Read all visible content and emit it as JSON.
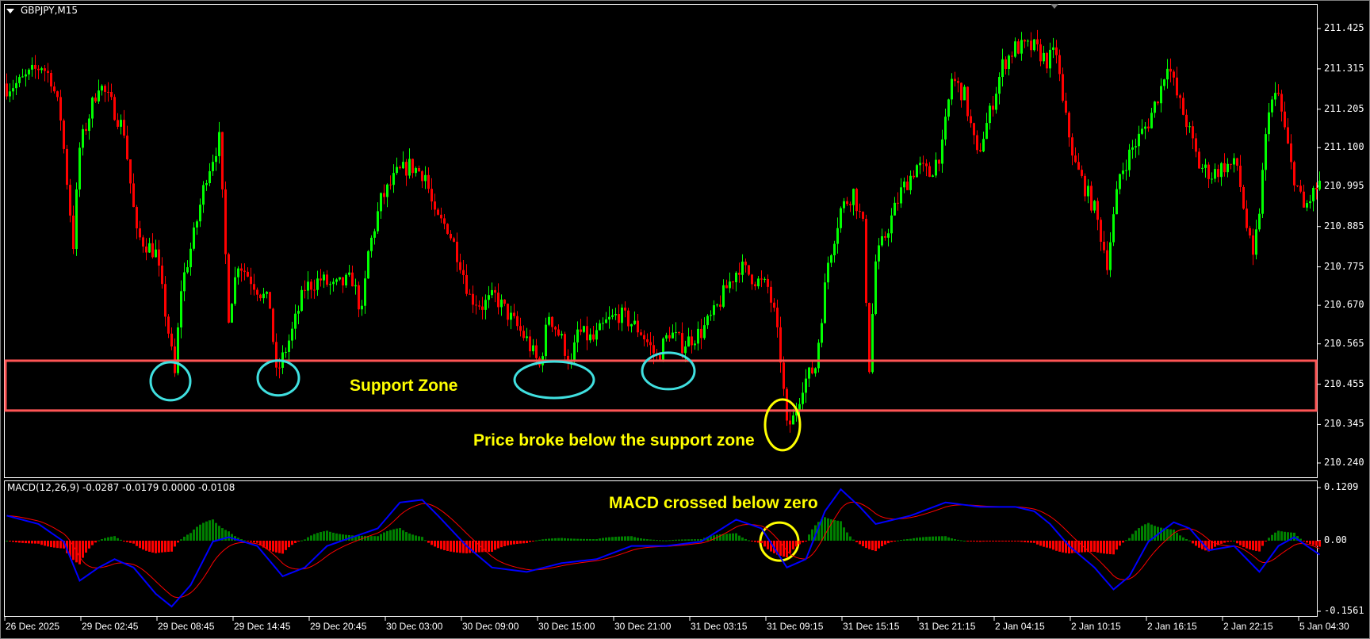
{
  "window": {
    "symbol_title": "GBPJPY,M15"
  },
  "indicator": {
    "label": "MACD(12,26,9) -0.0287 -0.0179 0.0000 -0.0108"
  },
  "annotations": {
    "support_zone": "Support Zone",
    "price_break": "Price broke below the support zone",
    "macd_cross": "MACD crossed below zero"
  },
  "colors": {
    "background": "#000000",
    "bull": "#00ff00",
    "bear": "#ff0000",
    "macd_line": "#0000ff",
    "signal_line": "#ff0000",
    "hist_pos": "#008000",
    "hist_neg": "#ff0000",
    "support_zone": "#ff5555",
    "circle_cyan": "#40e0e0",
    "circle_yellow": "#ffff00",
    "annotation_text": "#ffff00"
  },
  "chart_data": [
    {
      "type": "candlestick",
      "title": "GBPJPY,M15",
      "ylim": [
        210.24,
        211.425
      ],
      "y_ticks": [
        "211.425",
        "211.315",
        "211.205",
        "211.100",
        "210.995",
        "210.885",
        "210.775",
        "210.670",
        "210.565",
        "210.455",
        "210.345",
        "210.240"
      ],
      "x_ticks": [
        "26 Dec 2025",
        "29 Dec 02:45",
        "29 Dec 08:45",
        "29 Dec 14:45",
        "29 Dec 20:45",
        "30 Dec 03:00",
        "30 Dec 09:00",
        "30 Dec 15:00",
        "30 Dec 21:00",
        "31 Dec 03:15",
        "31 Dec 09:15",
        "31 Dec 15:15",
        "31 Dec 21:15",
        "2 Jan 04:15",
        "2 Jan 10:15",
        "2 Jan 16:15",
        "2 Jan 22:15",
        "5 Jan 04:30"
      ],
      "bars_total": 415,
      "close_path_bar_price": [
        [
          0,
          211.265
        ],
        [
          4,
          211.277
        ],
        [
          11,
          211.325
        ],
        [
          14,
          211.289
        ],
        [
          17,
          211.182
        ],
        [
          21,
          210.837
        ],
        [
          23,
          211.099
        ],
        [
          29,
          211.277
        ],
        [
          33,
          211.218
        ],
        [
          37,
          211.146
        ],
        [
          41,
          210.86
        ],
        [
          47,
          210.813
        ],
        [
          51,
          210.598
        ],
        [
          53,
          210.479
        ],
        [
          55,
          210.718
        ],
        [
          59,
          210.86
        ],
        [
          63,
          211.027
        ],
        [
          67,
          211.122
        ],
        [
          70,
          210.646
        ],
        [
          73,
          210.789
        ],
        [
          79,
          210.718
        ],
        [
          83,
          210.67
        ],
        [
          85,
          210.479
        ],
        [
          90,
          210.598
        ],
        [
          94,
          210.718
        ],
        [
          99,
          210.741
        ],
        [
          103,
          210.718
        ],
        [
          109,
          210.741
        ],
        [
          112,
          210.646
        ],
        [
          114,
          210.813
        ],
        [
          118,
          210.956
        ],
        [
          123,
          211.027
        ],
        [
          127,
          211.051
        ],
        [
          132,
          211.027
        ],
        [
          135,
          210.908
        ],
        [
          139,
          210.884
        ],
        [
          143,
          210.789
        ],
        [
          146,
          210.694
        ],
        [
          150,
          210.67
        ],
        [
          154,
          210.694
        ],
        [
          158,
          210.646
        ],
        [
          164,
          210.575
        ],
        [
          168,
          210.503
        ],
        [
          171,
          210.646
        ],
        [
          175,
          210.575
        ],
        [
          178,
          210.503
        ],
        [
          180,
          210.598
        ],
        [
          185,
          210.575
        ],
        [
          189,
          210.622
        ],
        [
          193,
          210.646
        ],
        [
          197,
          210.622
        ],
        [
          200,
          210.598
        ],
        [
          205,
          210.527
        ],
        [
          209,
          210.598
        ],
        [
          213,
          210.563
        ],
        [
          219,
          210.598
        ],
        [
          223,
          210.646
        ],
        [
          227,
          210.718
        ],
        [
          231,
          210.777
        ],
        [
          236,
          210.741
        ],
        [
          240,
          210.718
        ],
        [
          242,
          210.646
        ],
        [
          244,
          210.527
        ],
        [
          246,
          210.336
        ],
        [
          248,
          210.36
        ],
        [
          251,
          210.456
        ],
        [
          255,
          210.503
        ],
        [
          259,
          210.789
        ],
        [
          263,
          210.932
        ],
        [
          267,
          210.98
        ],
        [
          270,
          210.884
        ],
        [
          272,
          210.503
        ],
        [
          274,
          210.789
        ],
        [
          278,
          210.884
        ],
        [
          282,
          210.98
        ],
        [
          287,
          211.051
        ],
        [
          291,
          211.027
        ],
        [
          295,
          211.099
        ],
        [
          298,
          211.289
        ],
        [
          302,
          211.242
        ],
        [
          306,
          211.075
        ],
        [
          310,
          211.194
        ],
        [
          314,
          211.325
        ],
        [
          318,
          211.373
        ],
        [
          324,
          211.373
        ],
        [
          328,
          211.337
        ],
        [
          331,
          211.361
        ],
        [
          333,
          211.218
        ],
        [
          337,
          211.051
        ],
        [
          343,
          210.932
        ],
        [
          347,
          210.789
        ],
        [
          351,
          211.027
        ],
        [
          355,
          211.099
        ],
        [
          360,
          211.17
        ],
        [
          364,
          211.265
        ],
        [
          366,
          211.337
        ],
        [
          369,
          211.242
        ],
        [
          372,
          211.17
        ],
        [
          376,
          211.051
        ],
        [
          380,
          211.027
        ],
        [
          384,
          211.051
        ],
        [
          388,
          211.051
        ],
        [
          391,
          210.884
        ],
        [
          393,
          210.789
        ],
        [
          395,
          210.932
        ],
        [
          398,
          211.218
        ],
        [
          401,
          211.242
        ],
        [
          405,
          211.051
        ],
        [
          409,
          210.932
        ],
        [
          414,
          211.003
        ]
      ],
      "support_zone": {
        "top": 210.519,
        "bottom": 210.383
      },
      "highlight_circles_bar_price": [
        [
          52,
          210.463
        ],
        [
          86,
          210.472
        ],
        [
          173,
          210.467
        ],
        [
          209,
          210.491
        ]
      ],
      "break_circle_bar_price": [
        245,
        210.344
      ]
    },
    {
      "type": "line+histogram",
      "title": "MACD(12,26,9)",
      "ylim": [
        -0.1561,
        0.1209
      ],
      "y_ticks": [
        "0.1209",
        "0.00",
        "-0.1561"
      ],
      "macd_path_bar_value": [
        [
          0,
          0.057
        ],
        [
          10,
          0.038
        ],
        [
          18,
          -0.002
        ],
        [
          23,
          -0.091
        ],
        [
          29,
          -0.061
        ],
        [
          34,
          -0.042
        ],
        [
          40,
          -0.061
        ],
        [
          47,
          -0.121
        ],
        [
          52,
          -0.15
        ],
        [
          58,
          -0.101
        ],
        [
          65,
          -0.002
        ],
        [
          70,
          0.008
        ],
        [
          79,
          -0.012
        ],
        [
          87,
          -0.081
        ],
        [
          94,
          -0.061
        ],
        [
          101,
          -0.012
        ],
        [
          109,
          0.008
        ],
        [
          117,
          0.028
        ],
        [
          124,
          0.087
        ],
        [
          131,
          0.093
        ],
        [
          136,
          0.057
        ],
        [
          145,
          -0.012
        ],
        [
          153,
          -0.061
        ],
        [
          164,
          -0.071
        ],
        [
          175,
          -0.051
        ],
        [
          186,
          -0.042
        ],
        [
          197,
          -0.012
        ],
        [
          208,
          -0.012
        ],
        [
          219,
          -0.002
        ],
        [
          230,
          0.048
        ],
        [
          238,
          0.028
        ],
        [
          246,
          -0.061
        ],
        [
          252,
          -0.042
        ],
        [
          258,
          0.067
        ],
        [
          263,
          0.117
        ],
        [
          269,
          0.077
        ],
        [
          274,
          0.038
        ],
        [
          285,
          0.057
        ],
        [
          296,
          0.087
        ],
        [
          307,
          0.077
        ],
        [
          318,
          0.077
        ],
        [
          324,
          0.067
        ],
        [
          329,
          0.038
        ],
        [
          335,
          -0.012
        ],
        [
          343,
          -0.061
        ],
        [
          349,
          -0.111
        ],
        [
          354,
          -0.081
        ],
        [
          360,
          -0.002
        ],
        [
          368,
          0.042
        ],
        [
          373,
          0.028
        ],
        [
          379,
          -0.022
        ],
        [
          387,
          -0.012
        ],
        [
          395,
          -0.071
        ],
        [
          401,
          -0.012
        ],
        [
          406,
          0.008
        ],
        [
          414,
          -0.032
        ]
      ],
      "signal_period": 9,
      "cross_circle_bar_value": [
        244,
        -0.002
      ]
    }
  ]
}
